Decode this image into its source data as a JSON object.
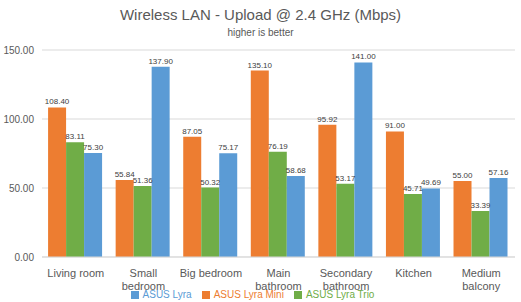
{
  "chart_data": {
    "type": "bar",
    "title": "Wireless LAN - Upload @ 2.4 GHz (Mbps)",
    "subtitle": "higher is better",
    "categories": [
      "Living room",
      "Small bedroom",
      "Big bedroom",
      "Main bathroom",
      "Secondary bathroom",
      "Kitchen",
      "Medium balcony"
    ],
    "series": [
      {
        "name": "ASUS Lyra Mini",
        "color": "#ed7d31",
        "values": [
          108.4,
          55.84,
          87.05,
          135.1,
          95.92,
          91,
          55
        ],
        "value_labels": [
          "108.40",
          "55.84",
          "87.05",
          "135.10",
          "95.92",
          "91.00",
          "55.00"
        ]
      },
      {
        "name": "ASUS Lyra Trio",
        "color": "#70ad47",
        "values": [
          83.11,
          51.36,
          50.32,
          76.19,
          53.17,
          45.71,
          33.39
        ],
        "value_labels": [
          "83.11",
          "51.36",
          "50.32",
          "76.19",
          "53.17",
          "45.71",
          "33.39"
        ]
      },
      {
        "name": "ASUS Lyra",
        "color": "#5b9bd5",
        "values": [
          75.3,
          137.9,
          75.17,
          58.68,
          141,
          49.69,
          57.16
        ],
        "value_labels": [
          "75.30",
          "137.90",
          "75.17",
          "58.68",
          "141.00",
          "49.69",
          "57.16"
        ]
      }
    ],
    "ylim": [
      0,
      150
    ],
    "yticks": [
      {
        "value": 0,
        "label": "0.00"
      },
      {
        "value": 50,
        "label": "50.00"
      },
      {
        "value": 100,
        "label": "100.00"
      },
      {
        "value": 150,
        "label": "150.00"
      }
    ],
    "grid": true,
    "legend": "bottom",
    "data_labels": true
  }
}
